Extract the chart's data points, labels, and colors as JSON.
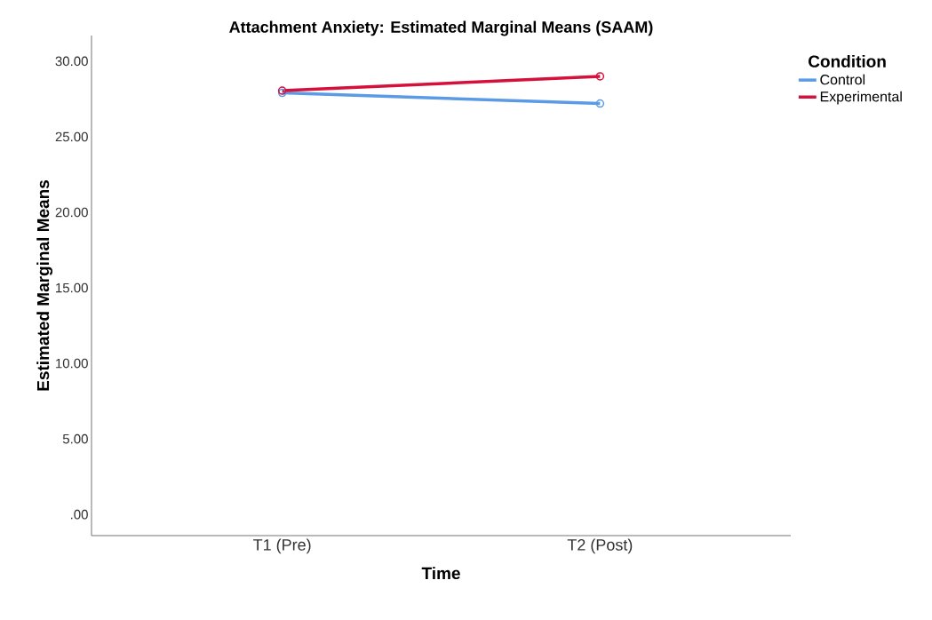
{
  "chart_data": {
    "type": "line",
    "title": "Attachment Anxiety: Estimated Marginal Means (SAAM)",
    "xlabel": "Time",
    "ylabel": "Estimated Marginal Means",
    "legend_title": "Condition",
    "categories": [
      "T1 (Pre)",
      "T2 (Post)"
    ],
    "series": [
      {
        "name": "Control",
        "color": "#5b9be6",
        "values": [
          27.9,
          27.2
        ]
      },
      {
        "name": "Experimental",
        "color": "#d5103a",
        "values": [
          28.05,
          29.0
        ]
      }
    ],
    "ylim": [
      -1.4,
      31.7
    ],
    "yticks": [
      {
        "value": 0,
        "label": ".00"
      },
      {
        "value": 5,
        "label": "5.00"
      },
      {
        "value": 10,
        "label": "10.00"
      },
      {
        "value": 15,
        "label": "15.00"
      },
      {
        "value": 20,
        "label": "20.00"
      },
      {
        "value": 25,
        "label": "25.00"
      },
      {
        "value": 30,
        "label": "30.00"
      }
    ],
    "grid": false,
    "legend": "top right",
    "marker": "circle",
    "line_style": "solid"
  }
}
